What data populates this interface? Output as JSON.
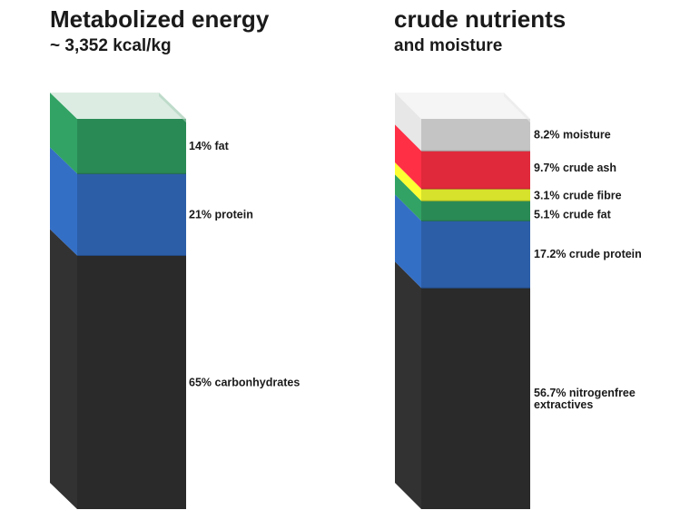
{
  "colors": {
    "carbohydrates": "#2a2a2a",
    "protein": "#2c5ea8",
    "fat": "#2a8a55",
    "fibre": "#d6e22b",
    "ash": "#e0293b",
    "moisture": "#c4c4c4"
  },
  "chart_data": [
    {
      "type": "stacked-bar",
      "title": "Metabolized energy",
      "subtitle": "~ 3,352 kcal/kg",
      "segments": [
        {
          "label": "65% carbonhydrates",
          "value": 65,
          "color": "carbohydrates"
        },
        {
          "label": "21% protein",
          "value": 21,
          "color": "protein"
        },
        {
          "label": "14% fat",
          "value": 14,
          "color": "fat"
        }
      ]
    },
    {
      "type": "stacked-bar",
      "title": "crude nutrients",
      "subtitle": "and moisture",
      "segments": [
        {
          "label": "56.7% nitrogenfree extractives",
          "value": 56.7,
          "color": "carbohydrates"
        },
        {
          "label": "17.2% crude protein",
          "value": 17.2,
          "color": "protein"
        },
        {
          "label": "5.1% crude fat",
          "value": 5.1,
          "color": "fat"
        },
        {
          "label": "3.1% crude fibre",
          "value": 3.1,
          "color": "fibre"
        },
        {
          "label": "9.7% crude ash",
          "value": 9.7,
          "color": "ash"
        },
        {
          "label": "8.2% moisture",
          "value": 8.2,
          "color": "moisture"
        }
      ]
    }
  ]
}
